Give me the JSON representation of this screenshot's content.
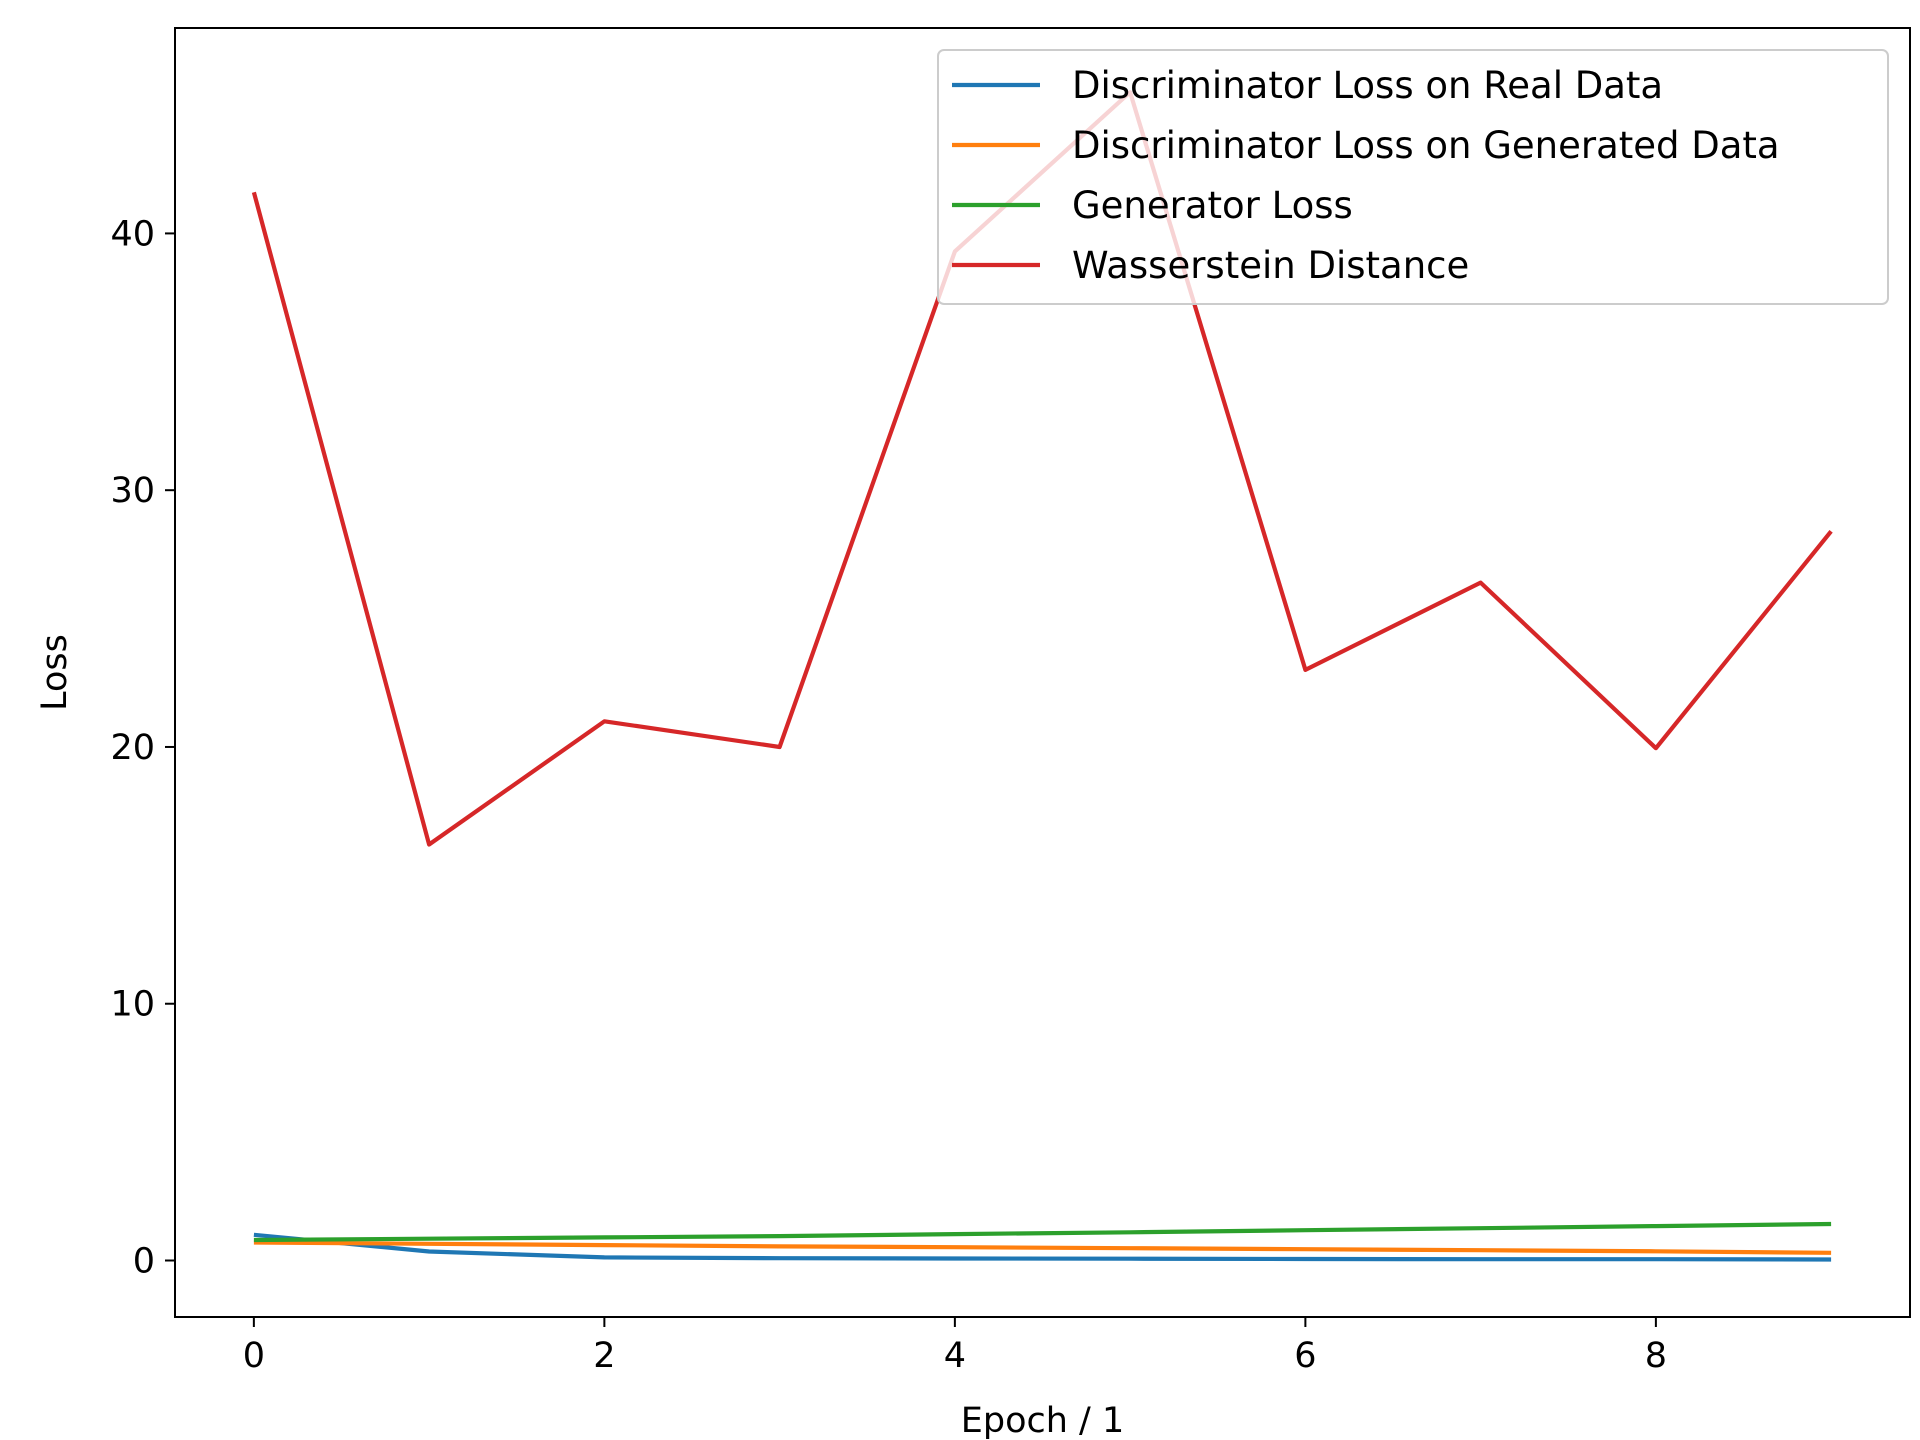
{
  "chart_data": {
    "type": "line",
    "title": "",
    "xlabel": "Epoch / 1",
    "ylabel": "Loss",
    "xlim": [
      -0.45,
      9.45
    ],
    "ylim": [
      -2.2,
      48
    ],
    "xticks": [
      0,
      2,
      4,
      6,
      8
    ],
    "yticks": [
      0,
      10,
      20,
      30,
      40
    ],
    "grid": false,
    "legend_position": "top-right",
    "x": [
      0,
      1,
      2,
      3,
      4,
      5,
      6,
      7,
      8,
      9
    ],
    "series": [
      {
        "name": "Discriminator Loss on Real Data",
        "color": "#1f77b4",
        "values": [
          1.0,
          0.35,
          0.12,
          0.09,
          0.08,
          0.07,
          0.06,
          0.05,
          0.05,
          0.04
        ]
      },
      {
        "name": "Discriminator Loss on Generated Data",
        "color": "#ff7f0e",
        "values": [
          0.7,
          0.65,
          0.6,
          0.55,
          0.52,
          0.48,
          0.44,
          0.4,
          0.36,
          0.3
        ]
      },
      {
        "name": "Generator Loss",
        "color": "#2ca02c",
        "values": [
          0.8,
          0.85,
          0.9,
          0.95,
          1.03,
          1.1,
          1.18,
          1.26,
          1.34,
          1.42
        ]
      },
      {
        "name": "Wasserstein Distance",
        "color": "#d62728",
        "values": [
          41.6,
          16.2,
          21.0,
          20.0,
          39.3,
          45.5,
          23.0,
          26.4,
          19.95,
          28.4
        ]
      }
    ]
  }
}
